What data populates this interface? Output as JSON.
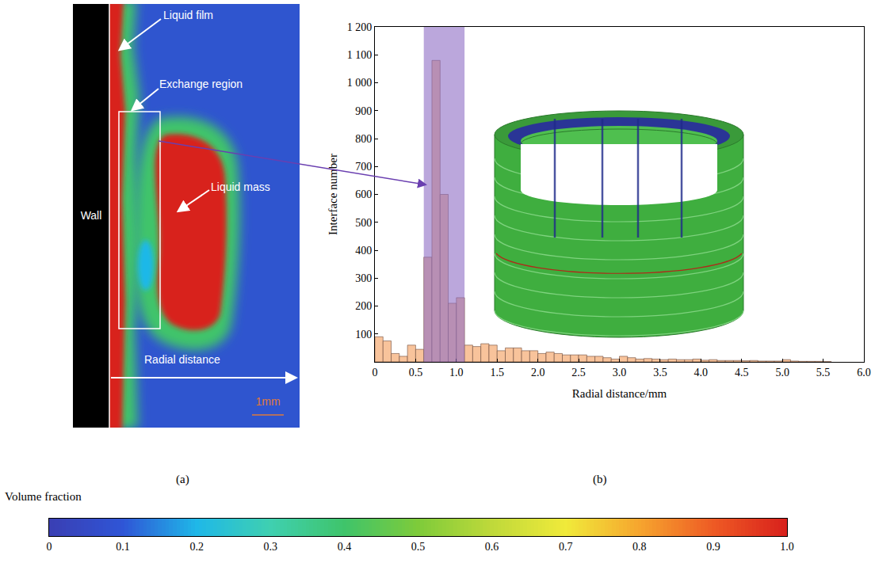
{
  "chart_data": {
    "type": "histogram",
    "x_label": "Radial distance/mm",
    "y_label": "Interface number",
    "bins": [
      0,
      0.1,
      0.2,
      0.3,
      0.4,
      0.5,
      0.6,
      0.7,
      0.8,
      0.9,
      1.0,
      1.1,
      1.2,
      1.3,
      1.4,
      1.5,
      1.6,
      1.7,
      1.8,
      1.9,
      2.0,
      2.1,
      2.2,
      2.3,
      2.4,
      2.5,
      2.6,
      2.7,
      2.8,
      2.9,
      3.0,
      3.1,
      3.2,
      3.3,
      3.4,
      3.5,
      3.6,
      3.7,
      3.8,
      3.9,
      4.0,
      4.1,
      4.2,
      4.3,
      4.4,
      4.5,
      4.6,
      4.7,
      4.8,
      4.9,
      5.0,
      5.1,
      5.2,
      5.3,
      5.4,
      5.5,
      5.6
    ],
    "values": [
      90,
      75,
      30,
      20,
      60,
      45,
      375,
      1080,
      600,
      210,
      230,
      60,
      55,
      65,
      60,
      40,
      50,
      50,
      40,
      40,
      30,
      35,
      30,
      25,
      25,
      25,
      20,
      20,
      15,
      10,
      20,
      15,
      10,
      12,
      10,
      8,
      10,
      8,
      8,
      10,
      6,
      8,
      5,
      5,
      5,
      4,
      5,
      3,
      3,
      3,
      8,
      3,
      2,
      2,
      2,
      1
    ],
    "color": "#f8c39b",
    "highlight": {
      "x0": 0.6,
      "x1": 1.1,
      "color": "#8e6cc4"
    },
    "xlim": [
      0,
      6
    ],
    "xticks": [
      0,
      0.5,
      {
        "value": 1,
        "label": "1.0"
      },
      1.5,
      {
        "value": 2,
        "label": "2.0"
      },
      2.5,
      {
        "value": 3,
        "label": "3.0"
      },
      3.5,
      {
        "value": 4,
        "label": "4.0"
      },
      4.5,
      {
        "value": 5,
        "label": "5.0"
      },
      5.5,
      {
        "value": 6,
        "label": "6.0"
      }
    ],
    "ylim": [
      0,
      1200
    ],
    "yticks": [
      100,
      200,
      300,
      400,
      500,
      600,
      700,
      800,
      900,
      {
        "value": 1000,
        "label": "1 000"
      },
      {
        "value": 1100,
        "label": "1 100"
      },
      {
        "value": 1200,
        "label": "1 200"
      }
    ],
    "grid": false
  },
  "panel_a": {
    "wall": "Wall",
    "liquid_film": "Liquid film",
    "exchange_region": "Exchange region",
    "liquid_mass": "Liquid mass",
    "radial_distance": "Radial distance",
    "scale_bar": "1mm"
  },
  "panel_labels": [
    "(a)",
    "(b)"
  ],
  "colorbar": {
    "title": "Volume fraction",
    "range": [
      0,
      1
    ],
    "ticks": [
      0,
      0.1,
      0.2,
      0.3,
      0.4,
      0.5,
      0.6,
      0.7,
      0.8,
      0.9,
      {
        "value": 1,
        "label": "1.0"
      }
    ]
  }
}
